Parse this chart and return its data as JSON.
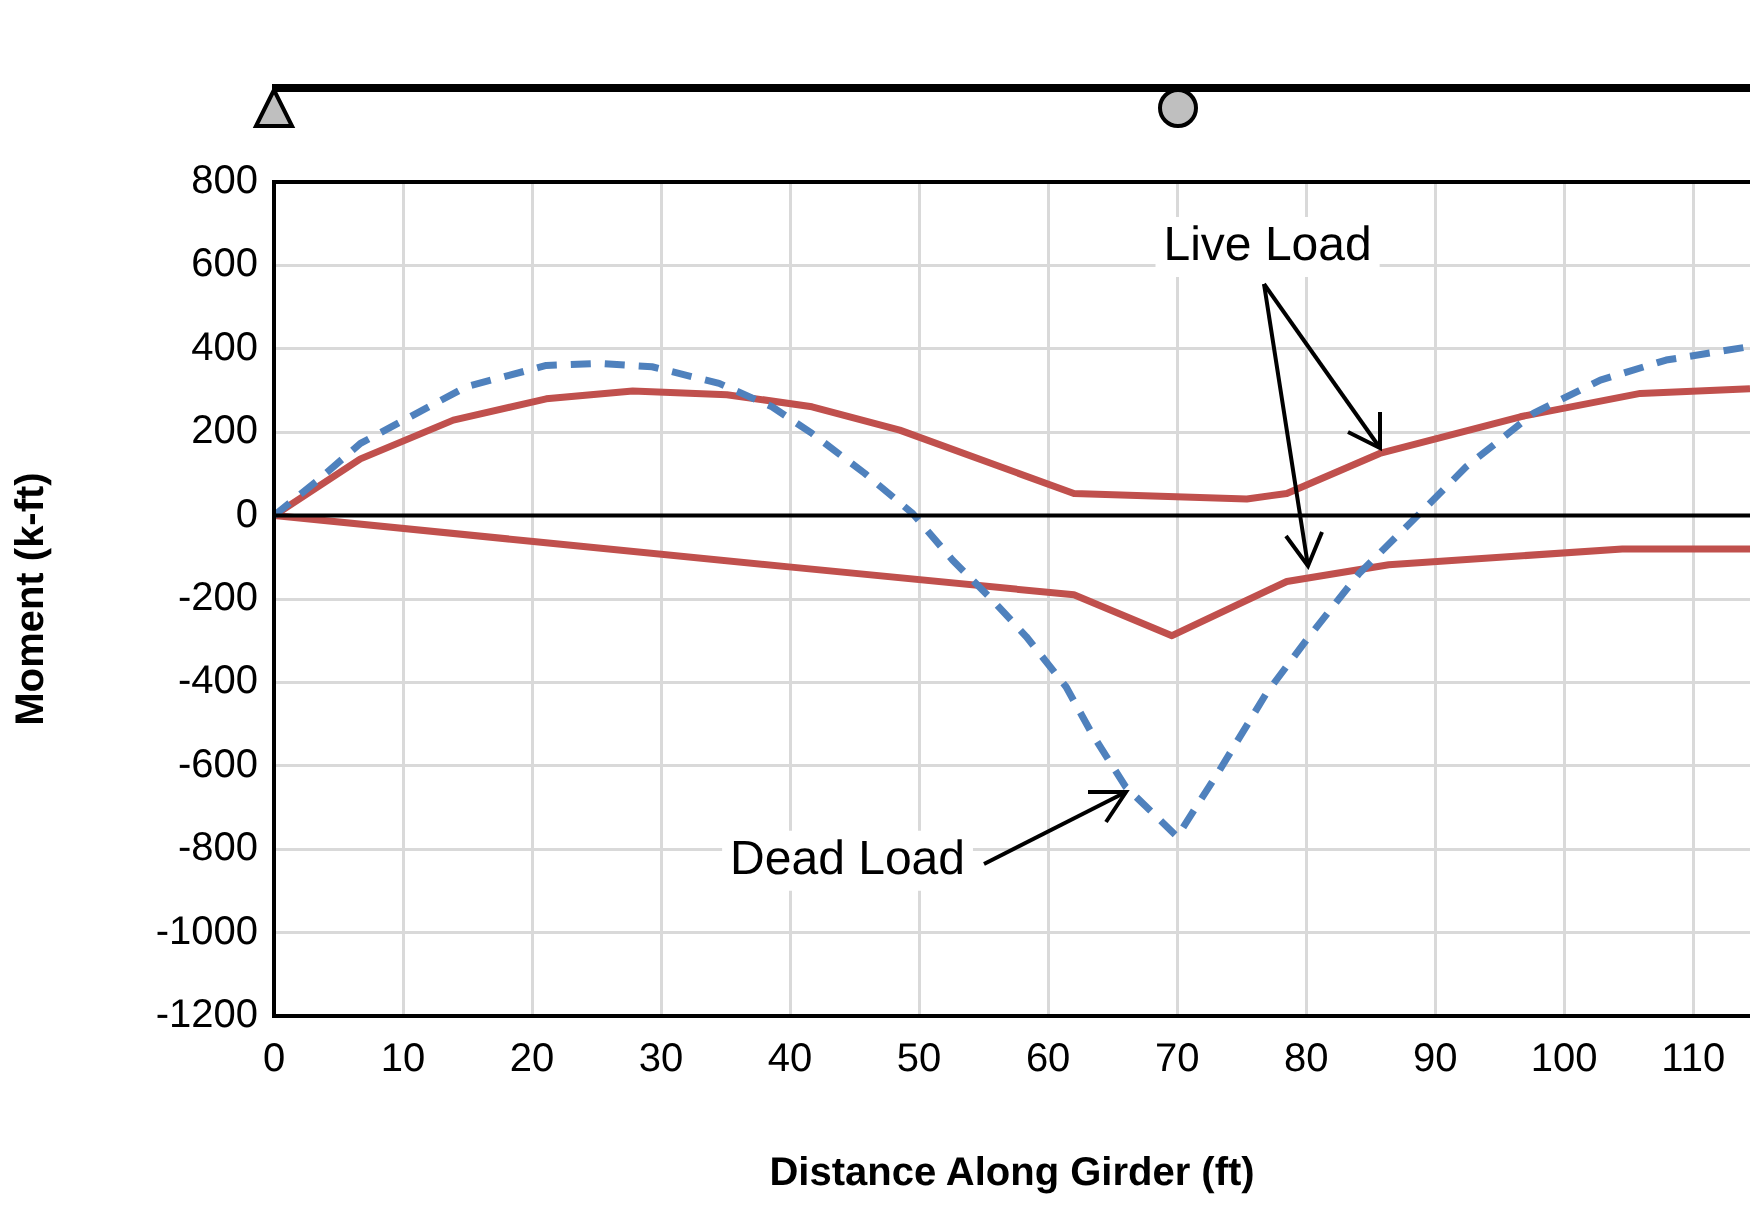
{
  "chart_data": {
    "type": "line",
    "xlabel": "Distance Along Girder (ft)",
    "ylabel": "Moment (k-ft)",
    "xlim": [
      0,
      114.4
    ],
    "xticks": [
      0,
      10,
      20,
      30,
      40,
      50,
      60,
      70,
      80,
      90,
      100,
      110
    ],
    "ylim": [
      -1200,
      800
    ],
    "yticks": [
      -1200,
      -1000,
      -800,
      -600,
      -400,
      -200,
      0,
      200,
      400,
      600,
      800
    ],
    "grid": true,
    "legend": false,
    "marker": "none",
    "ref_lines": [
      {
        "axis": "y",
        "value": 0,
        "color": "#000000"
      }
    ],
    "annotations": [
      {
        "text": "Live Load",
        "x": 86,
        "y": 150
      },
      {
        "text": "Dead Load",
        "x": 66,
        "y": -650
      }
    ],
    "series": [
      {
        "color": "#4f81bd",
        "line_style": "dashed",
        "x": [
          0,
          3.4,
          6.7,
          14.9,
          21.1,
          25.2,
          29.3,
          34.5,
          38.6,
          41.7,
          45.8,
          49.5,
          52.6,
          55.7,
          58.3,
          61.4,
          63.4,
          66.0,
          70.0,
          73.3,
          76.9,
          80.0,
          84.1,
          88.8,
          92.4,
          97.6,
          102.8,
          107.9,
          114.3
        ],
        "values": [
          0,
          85,
          173,
          309,
          360,
          365,
          357,
          317,
          261,
          197,
          101,
          5,
          -107,
          -203,
          -290,
          -411,
          -523,
          -650,
          -770,
          -610,
          -427,
          -299,
          -139,
          5,
          117,
          245,
          325,
          373,
          405
        ]
      },
      {
        "color": "#c0504d",
        "line_style": "solid",
        "x": [
          0,
          6.7,
          13.9,
          21.1,
          27.8,
          35.1,
          41.7,
          48.5,
          62.0,
          75.4,
          78.5,
          85.7,
          96.6,
          105.9,
          114.4
        ],
        "values": [
          0,
          136,
          229,
          280,
          299,
          290,
          261,
          205,
          53,
          40,
          53,
          149,
          237,
          293,
          304
        ]
      },
      {
        "color": "#c0504d",
        "line_style": "solid",
        "x": [
          0,
          20.1,
          39.9,
          62.0,
          69.6,
          78.5,
          86.4,
          104.5,
          114.4
        ],
        "values": [
          0,
          -62,
          -123,
          -190,
          -288,
          -158,
          -118,
          -80,
          -80
        ]
      }
    ]
  }
}
